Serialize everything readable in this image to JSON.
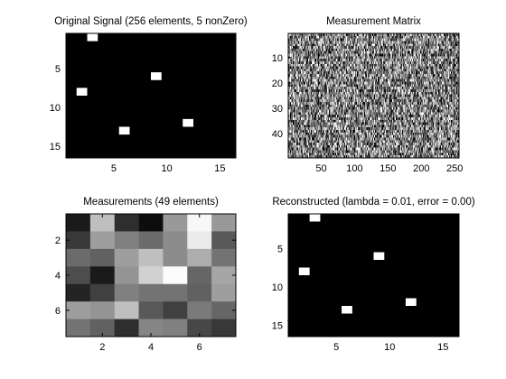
{
  "chart_data": [
    {
      "type": "heatmap",
      "title": "Original Signal (256 elements, 5 nonZero)",
      "colormap": "gray",
      "background_color": "#000000",
      "xlim": [
        0.5,
        16.5
      ],
      "ylim": [
        0.5,
        16.5
      ],
      "y_direction": "down",
      "xticks": [
        5,
        10,
        15
      ],
      "yticks": [
        5,
        10,
        15
      ],
      "cells": [
        {
          "x": 3,
          "y": 1,
          "value": 1
        },
        {
          "x": 9,
          "y": 6,
          "value": 1
        },
        {
          "x": 2,
          "y": 8,
          "value": 1
        },
        {
          "x": 12,
          "y": 12,
          "value": 1
        },
        {
          "x": 6,
          "y": 13,
          "value": 1
        }
      ]
    },
    {
      "type": "heatmap",
      "title": "Measurement Matrix",
      "colormap": "gray",
      "noise": "random",
      "rows": 49,
      "columns": 256,
      "xlim": [
        0.5,
        256.5
      ],
      "ylim": [
        0.5,
        49.5
      ],
      "y_direction": "down",
      "xticks": [
        50,
        100,
        150,
        200,
        250
      ],
      "yticks": [
        10,
        20,
        30,
        40
      ]
    },
    {
      "type": "heatmap",
      "title": "Measurements (49 elements)",
      "colormap": "gray",
      "xlim": [
        0.5,
        7.5
      ],
      "ylim": [
        0.5,
        7.5
      ],
      "y_direction": "down",
      "xticks": [
        2,
        4,
        6
      ],
      "yticks": [
        2,
        4,
        6
      ],
      "grid_values": [
        [
          0.1,
          0.75,
          0.18,
          0.05,
          0.6,
          0.97,
          0.6
        ],
        [
          0.22,
          0.62,
          0.5,
          0.42,
          0.55,
          0.92,
          0.35
        ],
        [
          0.42,
          0.38,
          0.62,
          0.75,
          0.55,
          0.68,
          0.45
        ],
        [
          0.3,
          0.1,
          0.58,
          0.82,
          0.99,
          0.4,
          0.65
        ],
        [
          0.14,
          0.25,
          0.5,
          0.45,
          0.45,
          0.38,
          0.62
        ],
        [
          0.62,
          0.58,
          0.75,
          0.35,
          0.25,
          0.48,
          0.4
        ],
        [
          0.45,
          0.38,
          0.18,
          0.52,
          0.5,
          0.28,
          0.22
        ]
      ]
    },
    {
      "type": "heatmap",
      "title": "Reconstructed (lambda = 0.01, error = 0.00)",
      "colormap": "gray",
      "background_color": "#000000",
      "xlim": [
        0.5,
        16.5
      ],
      "ylim": [
        0.5,
        16.5
      ],
      "y_direction": "down",
      "xticks": [
        5,
        10,
        15
      ],
      "yticks": [
        5,
        10,
        15
      ],
      "cells": [
        {
          "x": 3,
          "y": 1,
          "value": 1
        },
        {
          "x": 9,
          "y": 6,
          "value": 1
        },
        {
          "x": 2,
          "y": 8,
          "value": 1
        },
        {
          "x": 12,
          "y": 12,
          "value": 1
        },
        {
          "x": 6,
          "y": 13,
          "value": 1
        }
      ]
    }
  ]
}
